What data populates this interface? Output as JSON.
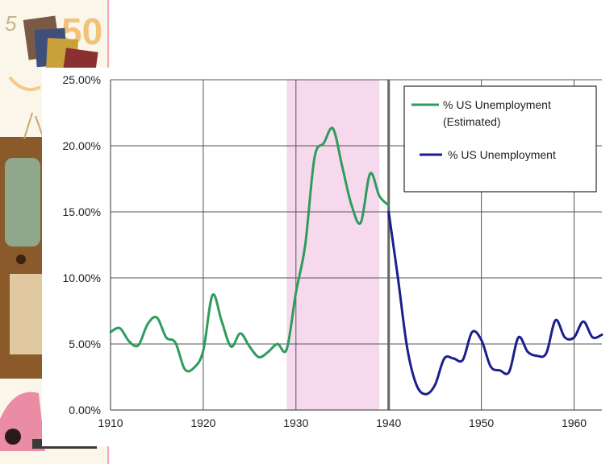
{
  "chart_data": {
    "type": "line",
    "title": "",
    "xlabel": "",
    "ylabel": "",
    "xlim": [
      1910,
      1963
    ],
    "ylim": [
      0,
      25
    ],
    "grid": true,
    "legend_position": "top-right",
    "x_ticks": [
      "1910",
      "1920",
      "1930",
      "1940",
      "1950",
      "1960"
    ],
    "x_tick_values": [
      1910,
      1920,
      1930,
      1940,
      1950,
      1960
    ],
    "y_ticks": [
      "0.00%",
      "5.00%",
      "10.00%",
      "15.00%",
      "20.00%",
      "25.00%"
    ],
    "y_tick_values": [
      0,
      5,
      10,
      15,
      20,
      25
    ],
    "shaded_region": {
      "x_start": 1929,
      "x_end": 1939,
      "color": "#f7d9ee"
    },
    "reference_line": {
      "x": 1940,
      "color": "#666666"
    },
    "series": [
      {
        "name": "% US Unemployment (Estimated)",
        "color": "#2e9c5c",
        "x": [
          1910,
          1911,
          1912,
          1913,
          1914,
          1915,
          1916,
          1917,
          1918,
          1919,
          1920,
          1921,
          1922,
          1923,
          1924,
          1925,
          1926,
          1927,
          1928,
          1929,
          1930,
          1931,
          1932,
          1933,
          1934,
          1935,
          1936,
          1937,
          1938,
          1939,
          1940
        ],
        "y": [
          5.9,
          6.2,
          5.2,
          4.9,
          6.5,
          7.0,
          5.5,
          5.1,
          3.1,
          3.2,
          4.5,
          8.7,
          6.7,
          4.8,
          5.8,
          4.8,
          4.0,
          4.4,
          5.0,
          4.6,
          8.9,
          12.5,
          19.1,
          20.2,
          21.3,
          18.4,
          15.5,
          14.2,
          17.9,
          16.2,
          15.5
        ]
      },
      {
        "name": "% US Unemployment",
        "color": "#1a1f8c",
        "x": [
          1940,
          1941,
          1942,
          1943,
          1944,
          1945,
          1946,
          1947,
          1948,
          1949,
          1950,
          1951,
          1952,
          1953,
          1954,
          1955,
          1956,
          1957,
          1958,
          1959,
          1960,
          1961,
          1962,
          1963
        ],
        "y": [
          15.0,
          10.0,
          4.7,
          1.9,
          1.2,
          1.9,
          3.9,
          3.9,
          3.8,
          5.9,
          5.3,
          3.3,
          3.0,
          2.9,
          5.5,
          4.4,
          4.1,
          4.3,
          6.8,
          5.5,
          5.5,
          6.7,
          5.5,
          5.7
        ]
      }
    ],
    "legend": [
      {
        "line1": "% US Unemployment",
        "line2": "(Estimated)",
        "color": "#2e9c5c"
      },
      {
        "line1": "% US Unemployment",
        "line2": "",
        "color": "#1a1f8c"
      }
    ]
  },
  "decoration": {
    "fifties_label": "50",
    "script_label": "5"
  }
}
